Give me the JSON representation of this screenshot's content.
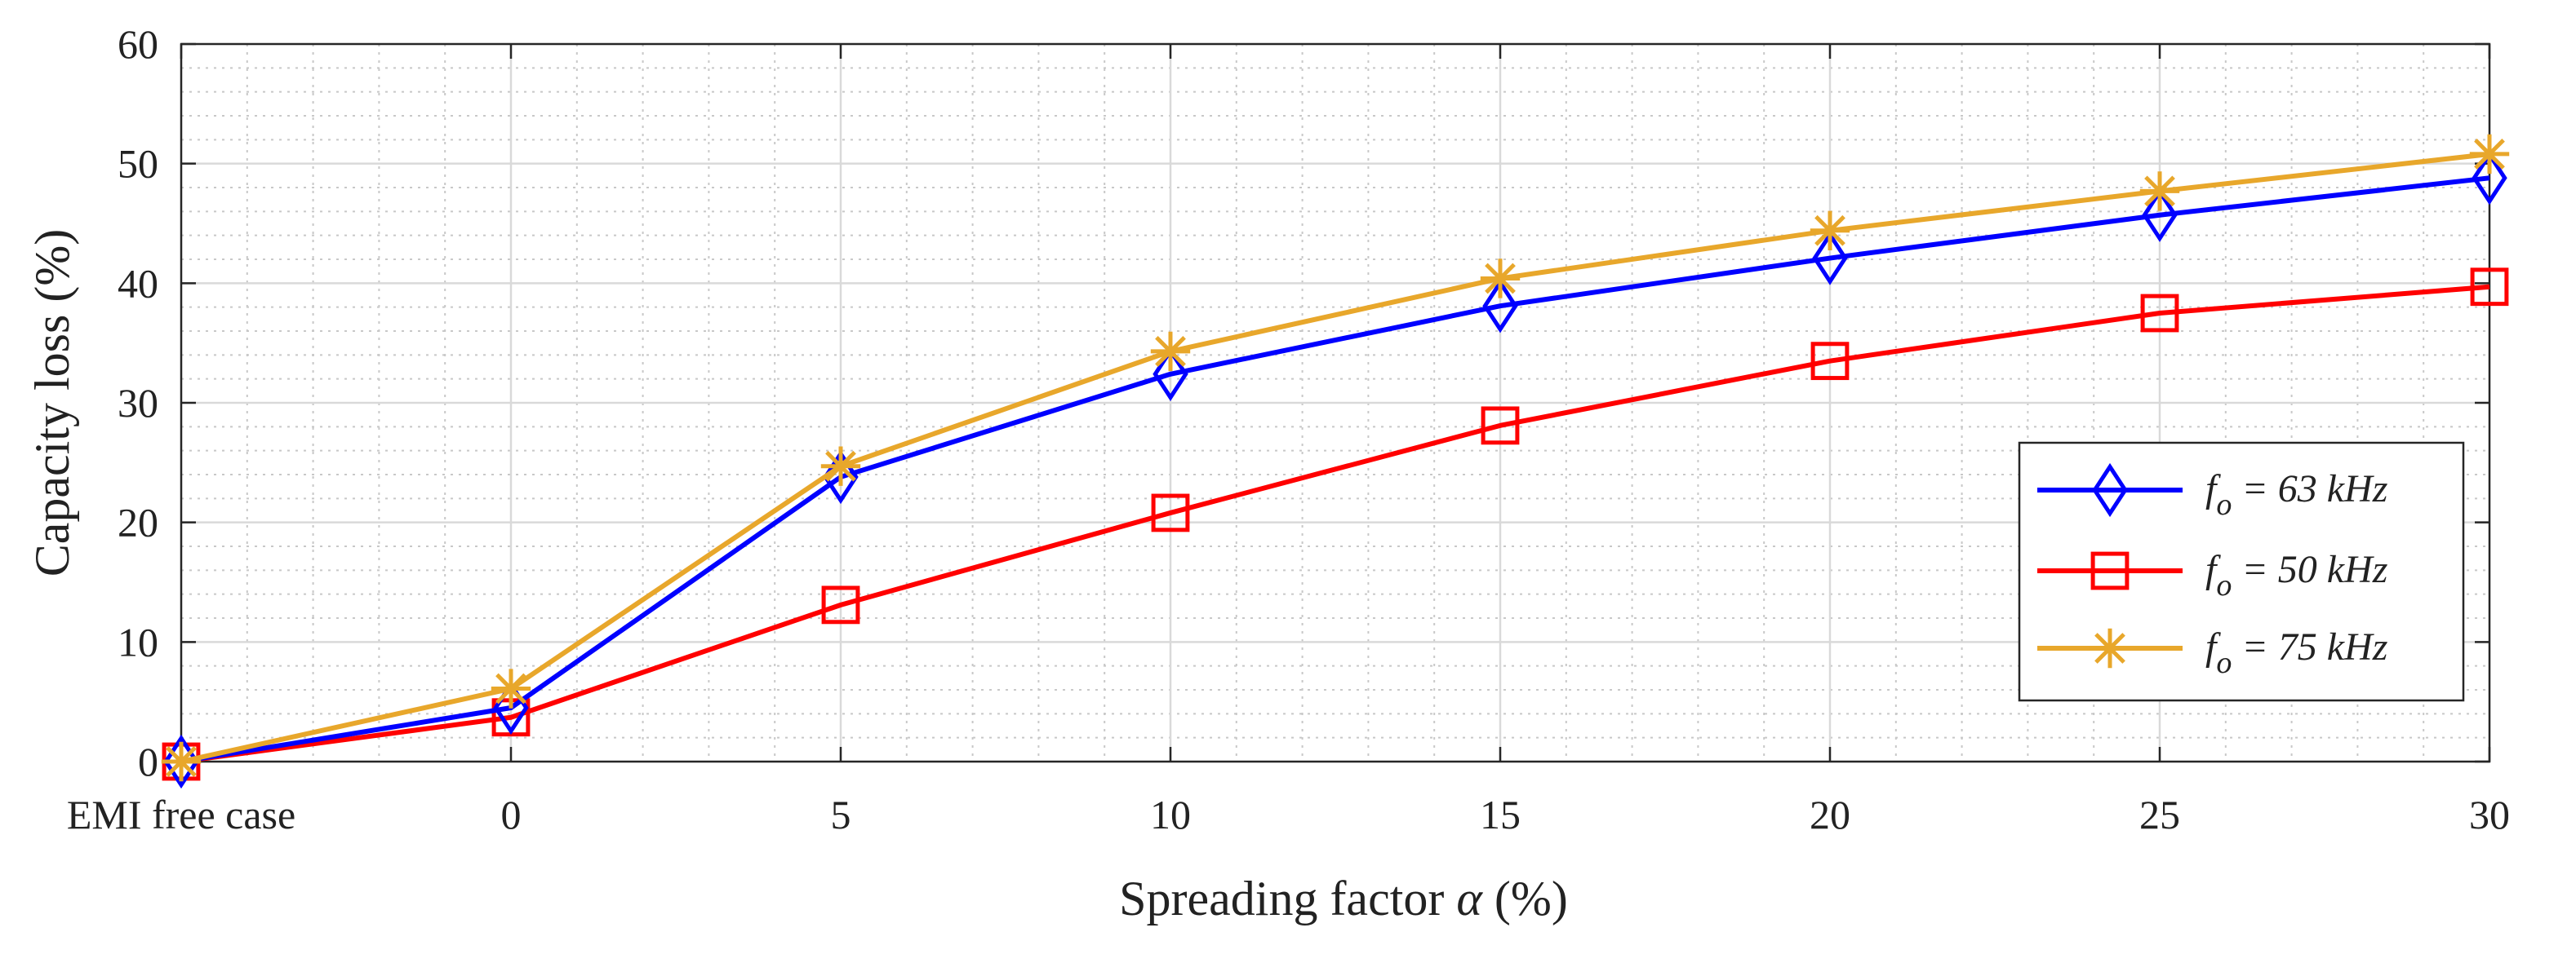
{
  "chart_data": {
    "type": "line",
    "title": "",
    "xlabel_text": "Spreading factor ",
    "xlabel_symbol": "α",
    "xlabel_unit": " (%)",
    "ylabel": "Capacity loss (%)",
    "categories": [
      "EMI free case",
      "0",
      "5",
      "10",
      "15",
      "20",
      "25",
      "30"
    ],
    "yticks": [
      0,
      10,
      20,
      30,
      40,
      50,
      60
    ],
    "ylim": [
      0,
      60
    ],
    "grid": true,
    "legend_position": "right",
    "series": [
      {
        "name_symbol": "f",
        "name_subscript": "o",
        "name_rest": " = 63 kHz",
        "marker": "diamond",
        "color": "#0000ff",
        "values": [
          0,
          4.5,
          23.8,
          32.4,
          38.1,
          42.1,
          45.7,
          48.8
        ]
      },
      {
        "name_symbol": "f",
        "name_subscript": "o",
        "name_rest": " = 50 kHz",
        "marker": "square",
        "color": "#ff0000",
        "values": [
          0,
          3.7,
          13.1,
          20.8,
          28.1,
          33.5,
          37.5,
          39.7
        ]
      },
      {
        "name_symbol": "f",
        "name_subscript": "o",
        "name_rest": " = 75 kHz",
        "marker": "asterisk",
        "color": "#e8a72b",
        "values": [
          0,
          6.1,
          24.7,
          34.3,
          40.4,
          44.4,
          47.7,
          50.8
        ]
      }
    ]
  }
}
